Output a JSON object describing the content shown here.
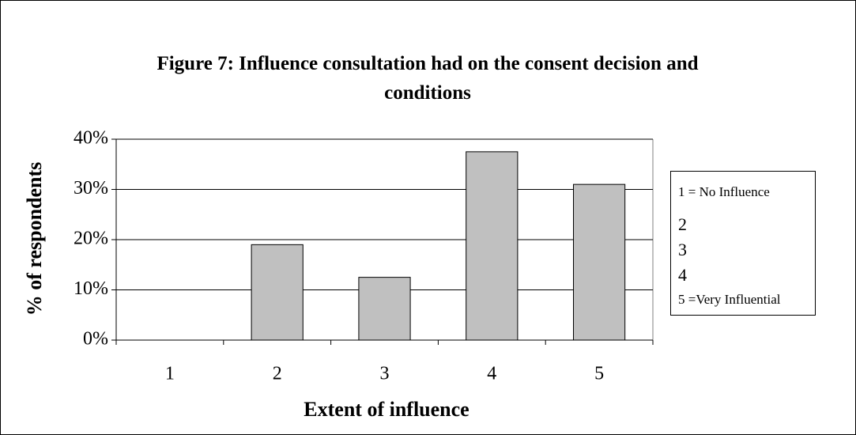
{
  "chart_data": {
    "type": "bar",
    "title": "Figure 7: Influence consultation had on the consent decision and conditions",
    "x_label": "Extent of influence",
    "y_label": "% of respondents",
    "categories": [
      "1",
      "2",
      "3",
      "4",
      "5"
    ],
    "values": [
      0,
      19,
      12.5,
      37.5,
      31
    ],
    "color": "#c0c0c0",
    "ylim": [
      0,
      40
    ],
    "yticks": [
      {
        "value": 0,
        "label": "0%"
      },
      {
        "value": 10,
        "label": "10%"
      },
      {
        "value": 20,
        "label": "20%"
      },
      {
        "value": 30,
        "label": "30%"
      },
      {
        "value": 40,
        "label": "40%"
      }
    ],
    "grid": true,
    "legend": [
      "1 = No Influence",
      "2",
      "3",
      "4",
      "5 =Very Influential"
    ]
  }
}
